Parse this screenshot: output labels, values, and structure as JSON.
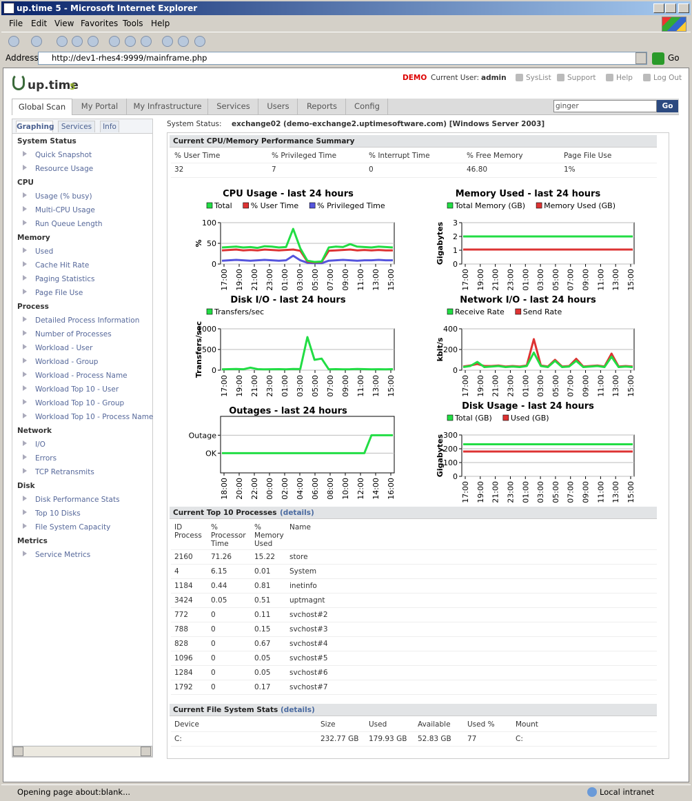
{
  "window": {
    "title": "up.time 5 - Microsoft Internet Explorer",
    "menu": [
      "File",
      "Edit",
      "View",
      "Favorites",
      "Tools",
      "Help"
    ],
    "address_label": "Address",
    "url": "http://dev1-rhes4:9999/mainframe.php",
    "go": "Go",
    "status": "Opening page about:blank...",
    "zone": "Local intranet"
  },
  "header": {
    "logo": "up.time",
    "logo_version": "5",
    "demo": "DEMO",
    "user_label": "Current User:",
    "user": "admin",
    "links": [
      "SysList",
      "Support",
      "Help",
      "Log Out"
    ]
  },
  "tabs": [
    "Global Scan",
    "My Portal",
    "My Infrastructure",
    "Services",
    "Users",
    "Reports",
    "Config"
  ],
  "search": {
    "value": "ginger",
    "button": "Go"
  },
  "sidebar": {
    "tabs": [
      "Graphing",
      "Services",
      "Info"
    ],
    "sections": [
      {
        "title": "System Status",
        "items": [
          "Quick Snapshot",
          "Resource Usage"
        ]
      },
      {
        "title": "CPU",
        "items": [
          "Usage (% busy)",
          "Multi-CPU Usage",
          "Run Queue Length"
        ]
      },
      {
        "title": "Memory",
        "items": [
          "Used",
          "Cache Hit Rate",
          "Paging Statistics",
          "Page File Use"
        ]
      },
      {
        "title": "Process",
        "items": [
          "Detailed Process Information",
          "Number of Processes",
          "Workload - User",
          "Workload - Group",
          "Workload - Process Name",
          "Workload Top 10 - User",
          "Workload Top 10 - Group",
          "Workload Top 10 - Process Name"
        ]
      },
      {
        "title": "Network",
        "items": [
          "I/O",
          "Errors",
          "TCP Retransmits"
        ]
      },
      {
        "title": "Disk",
        "items": [
          "Disk Performance Stats",
          "Top 10 Disks",
          "File System Capacity"
        ]
      },
      {
        "title": "Metrics",
        "items": [
          "Service Metrics"
        ]
      }
    ]
  },
  "system_status": {
    "label": "System Status:",
    "value": "exchange02 (demo-exchange2.uptimesoftware.com) [Windows Server 2003]"
  },
  "summary": {
    "title": "Current CPU/Memory Performance Summary",
    "columns": [
      "% User Time",
      "% Privileged Time",
      "% Interrupt Time",
      "% Free Memory",
      "Page File Use"
    ],
    "values": [
      "32",
      "7",
      "0",
      "46.80",
      "1%"
    ]
  },
  "charts": [
    {
      "type": "line",
      "title": "CPU Usage - last 24 hours",
      "ylabel": "%",
      "ylim": [
        0,
        100
      ],
      "yticks": [
        0,
        50,
        100
      ],
      "categories": [
        "17:00",
        "19:00",
        "21:00",
        "23:00",
        "01:00",
        "03:00",
        "05:00",
        "07:00",
        "09:00",
        "11:00",
        "13:00",
        "15:00"
      ],
      "series": [
        {
          "name": "Total",
          "color": "#22dd44",
          "values": [
            40,
            41,
            42,
            40,
            41,
            39,
            43,
            42,
            40,
            41,
            85,
            38,
            8,
            5,
            6,
            40,
            42,
            41,
            48,
            42,
            41,
            40,
            42,
            41,
            40
          ]
        },
        {
          "name": "% User Time",
          "color": "#dd3333",
          "values": [
            33,
            34,
            35,
            33,
            34,
            33,
            35,
            34,
            33,
            34,
            35,
            32,
            6,
            4,
            5,
            32,
            33,
            34,
            35,
            33,
            34,
            33,
            34,
            33,
            33
          ]
        },
        {
          "name": "% Privileged Time",
          "color": "#5555dd",
          "values": [
            8,
            9,
            10,
            9,
            8,
            9,
            10,
            9,
            8,
            9,
            20,
            9,
            3,
            2,
            2,
            8,
            9,
            10,
            9,
            8,
            9,
            9,
            10,
            9,
            9
          ]
        }
      ]
    },
    {
      "type": "line",
      "title": "Memory Used - last 24 hours",
      "ylabel": "Gigabytes",
      "ylim": [
        0,
        3
      ],
      "yticks": [
        0,
        1,
        2,
        3
      ],
      "categories": [
        "17:00",
        "19:00",
        "21:00",
        "23:00",
        "01:00",
        "03:00",
        "05:00",
        "07:00",
        "09:00",
        "11:00",
        "13:00",
        "15:00"
      ],
      "series": [
        {
          "name": "Total Memory (GB)",
          "color": "#22dd44",
          "values": [
            2,
            2
          ]
        },
        {
          "name": "Memory Used (GB)",
          "color": "#dd3333",
          "values": [
            1.05,
            1.05
          ]
        }
      ]
    },
    {
      "type": "line",
      "title": "Disk I/O - last 24 hours",
      "ylabel": "Transfers/sec",
      "ylim": [
        0,
        1000
      ],
      "yticks": [
        0,
        500,
        1000
      ],
      "categories": [
        "17:00",
        "19:00",
        "21:00",
        "23:00",
        "01:00",
        "03:00",
        "05:00",
        "07:00",
        "09:00",
        "11:00",
        "13:00",
        "15:00"
      ],
      "series": [
        {
          "name": "Transfers/sec",
          "color": "#22dd44",
          "values": [
            20,
            25,
            30,
            22,
            60,
            25,
            20,
            22,
            25,
            20,
            30,
            28,
            800,
            250,
            280,
            20,
            25,
            20,
            22,
            30,
            25,
            20,
            22,
            20,
            25
          ]
        }
      ]
    },
    {
      "type": "line",
      "title": "Network I/O - last 24 hours",
      "ylabel": "kbit/s",
      "ylim": [
        0,
        400
      ],
      "yticks": [
        0,
        200,
        400
      ],
      "categories": [
        "17:00",
        "19:00",
        "21:00",
        "23:00",
        "01:00",
        "03:00",
        "05:00",
        "07:00",
        "09:00",
        "11:00",
        "13:00",
        "15:00"
      ],
      "series": [
        {
          "name": "Receive Rate",
          "color": "#22dd44",
          "values": [
            30,
            40,
            80,
            30,
            35,
            40,
            30,
            35,
            30,
            40,
            170,
            40,
            30,
            90,
            30,
            35,
            90,
            30,
            35,
            40,
            30,
            130,
            30,
            35,
            30
          ]
        },
        {
          "name": "Send Rate",
          "color": "#dd3333",
          "values": [
            35,
            45,
            60,
            40,
            40,
            45,
            35,
            40,
            35,
            45,
            300,
            45,
            35,
            100,
            35,
            40,
            110,
            35,
            40,
            45,
            35,
            160,
            35,
            40,
            35
          ]
        }
      ]
    },
    {
      "type": "line",
      "title": "Outages - last 24 hours",
      "ylim": [
        -1.1,
        2.05
      ],
      "yticks": [
        {
          "value": 0,
          "label": "OK"
        },
        {
          "value": 1,
          "label": "Outage"
        }
      ],
      "categories": [
        "18:00",
        "20:00",
        "22:00",
        "00:00",
        "02:00",
        "04:00",
        "06:00",
        "08:00",
        "10:00",
        "12:00",
        "14:00",
        "16:00"
      ],
      "series": [
        {
          "color": "#22dd44",
          "values": [
            0,
            0,
            0,
            0,
            0,
            0,
            0,
            0,
            0,
            0,
            0,
            0,
            0,
            0,
            0,
            0,
            0,
            0,
            0,
            0,
            0,
            1,
            1,
            1,
            1
          ]
        }
      ]
    },
    {
      "type": "line",
      "title": "Disk Usage - last 24 hours",
      "ylabel": "Gigabytes",
      "ylim": [
        0,
        300
      ],
      "yticks": [
        0,
        100,
        200,
        300
      ],
      "categories": [
        "17:00",
        "19:00",
        "21:00",
        "23:00",
        "01:00",
        "03:00",
        "05:00",
        "07:00",
        "09:00",
        "11:00",
        "13:00",
        "15:00"
      ],
      "series": [
        {
          "name": "Total (GB)",
          "color": "#22dd44",
          "values": [
            232.77,
            232.77
          ]
        },
        {
          "name": "Used (GB)",
          "color": "#dd3333",
          "values": [
            179.93,
            179.93
          ]
        }
      ]
    }
  ],
  "processes": {
    "title": "Current Top 10 Processes",
    "link": "(details)",
    "columns": [
      "ID Process",
      "% Processor Time",
      "% Memory Used",
      "Name"
    ],
    "rows": [
      [
        "2160",
        "71.26",
        "15.22",
        "store"
      ],
      [
        "4",
        "6.15",
        "0.01",
        "System"
      ],
      [
        "1184",
        "0.44",
        "0.81",
        "inetinfo"
      ],
      [
        "3424",
        "0.05",
        "0.51",
        "uptmagnt"
      ],
      [
        "772",
        "0",
        "0.11",
        "svchost#2"
      ],
      [
        "788",
        "0",
        "0.15",
        "svchost#3"
      ],
      [
        "828",
        "0",
        "0.67",
        "svchost#4"
      ],
      [
        "1096",
        "0",
        "0.05",
        "svchost#5"
      ],
      [
        "1284",
        "0",
        "0.05",
        "svchost#6"
      ],
      [
        "1792",
        "0",
        "0.17",
        "svchost#7"
      ]
    ]
  },
  "filesystems": {
    "title": "Current File System Stats",
    "link": "(details)",
    "columns": [
      "Device",
      "Size",
      "Used",
      "Available",
      "Used %",
      "Mount"
    ],
    "rows": [
      [
        "C:",
        "232.77 GB",
        "179.93 GB",
        "52.83 GB",
        "77",
        "C:"
      ]
    ]
  }
}
